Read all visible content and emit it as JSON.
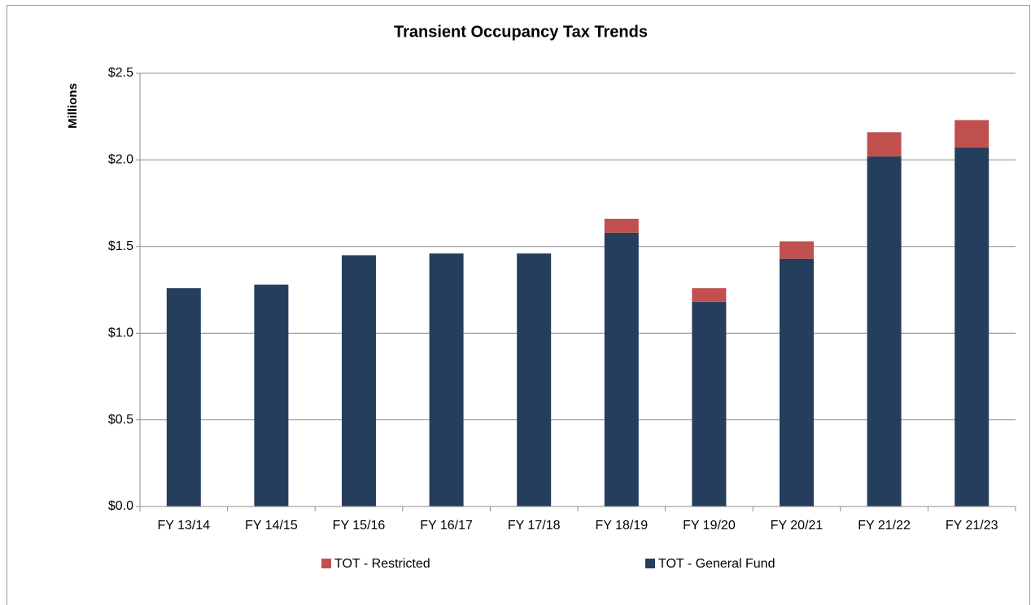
{
  "chart_data": {
    "type": "stacked_bar",
    "title": "Transient Occupancy Tax Trends",
    "y_label": "Millions",
    "categories": [
      "FY 13/14",
      "FY 14/15",
      "FY 15/16",
      "FY 16/17",
      "FY 17/18",
      "FY 18/19",
      "FY 19/20",
      "FY 20/21",
      "FY 21/22",
      "FY 21/23"
    ],
    "series": [
      {
        "name": "TOT - General Fund",
        "color": "#253e5e",
        "values": [
          1.26,
          1.28,
          1.45,
          1.46,
          1.46,
          1.58,
          1.18,
          1.43,
          2.02,
          2.07
        ]
      },
      {
        "name": "TOT - Restricted",
        "color": "#c0504d",
        "values": [
          0,
          0,
          0,
          0,
          0,
          0.08,
          0.08,
          0.1,
          0.14,
          0.16
        ]
      }
    ],
    "ylim": [
      0,
      2.5
    ],
    "yticks": [
      {
        "value": 0,
        "label": "$0.0"
      },
      {
        "value": 0.5,
        "label": "$0.5"
      },
      {
        "value": 1,
        "label": "$1.0"
      },
      {
        "value": 1.5,
        "label": "$1.5"
      },
      {
        "value": 2,
        "label": "$2.0"
      },
      {
        "value": 2.5,
        "label": "$2.5"
      }
    ],
    "grid": true,
    "legend": "bottom"
  }
}
